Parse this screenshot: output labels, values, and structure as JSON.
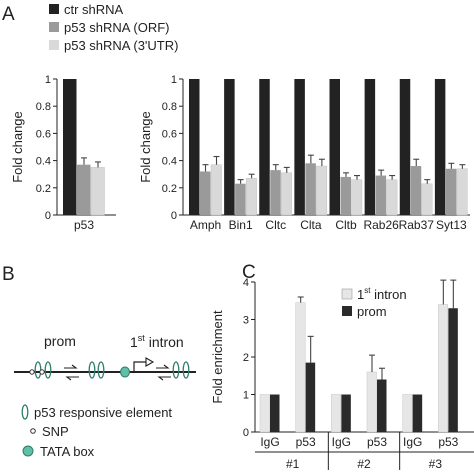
{
  "panels": {
    "A": "A",
    "B": "B",
    "C": "C"
  },
  "legend_a": [
    {
      "label": "ctr shRNA",
      "color": "#222222"
    },
    {
      "label": "p53 shRNA (ORF)",
      "color": "#9a9a9a"
    },
    {
      "label": "p53 shRNA (3'UTR)",
      "color": "#d9d9d9"
    }
  ],
  "diagram": {
    "prom_label": "prom",
    "intron_label_num": "1",
    "intron_label_sup": "st",
    "intron_label_word": " intron",
    "legend": [
      {
        "label": "p53 responsive element",
        "icon": "ellipse-icon"
      },
      {
        "label": "SNP",
        "icon": "circle-icon"
      },
      {
        "label": "TATA box",
        "icon": "tata-box-icon"
      }
    ],
    "colors": {
      "element": "#2e7d6a",
      "tata_fill": "#5fbfa8"
    }
  },
  "chart_data": [
    {
      "id": "a1",
      "type": "bar",
      "categories": [
        "p53"
      ],
      "series": [
        {
          "values": [
            1.0
          ],
          "errors": [
            0
          ],
          "color": "#222222"
        },
        {
          "values": [
            0.37
          ],
          "errors": [
            0.05
          ],
          "color": "#9a9a9a"
        },
        {
          "values": [
            0.35
          ],
          "errors": [
            0.04
          ],
          "color": "#d9d9d9"
        }
      ],
      "ylabel": "Fold change",
      "ylim": [
        0,
        1
      ],
      "yticks": [
        0,
        0.2,
        0.4,
        0.6,
        0.8,
        1
      ],
      "ytick_labels": [
        "0",
        "0.2",
        "0.4",
        "0.6",
        "0.8",
        "1"
      ]
    },
    {
      "id": "a2",
      "type": "bar",
      "categories": [
        "Amph",
        "Bin1",
        "Cltc",
        "Clta",
        "Cltb",
        "Rab26",
        "Rab37",
        "Syt13"
      ],
      "series": [
        {
          "values": [
            1,
            1,
            1,
            1,
            1,
            1,
            1,
            1
          ],
          "errors": [
            0,
            0,
            0,
            0,
            0,
            0,
            0,
            0
          ],
          "color": "#222222"
        },
        {
          "values": [
            0.32,
            0.23,
            0.33,
            0.38,
            0.28,
            0.29,
            0.36,
            0.34
          ],
          "errors": [
            0.05,
            0.03,
            0.04,
            0.06,
            0.03,
            0.04,
            0.05,
            0.04
          ],
          "color": "#9a9a9a"
        },
        {
          "values": [
            0.37,
            0.27,
            0.31,
            0.36,
            0.26,
            0.26,
            0.23,
            0.34
          ],
          "errors": [
            0.06,
            0.03,
            0.04,
            0.05,
            0.03,
            0.03,
            0.03,
            0.03
          ],
          "color": "#d9d9d9"
        }
      ],
      "ylabel": "Fold change",
      "ylim": [
        0,
        1
      ],
      "yticks": [
        0,
        0.2,
        0.4,
        0.6,
        0.8,
        1
      ],
      "ytick_labels": [
        "0",
        "0.2",
        "0.4",
        "0.6",
        "0.8",
        "1"
      ]
    },
    {
      "id": "c",
      "type": "bar",
      "categories": [
        "IgG",
        "p53",
        "IgG",
        "p53",
        "IgG",
        "p53"
      ],
      "groups": [
        "#1",
        "#2",
        "#3"
      ],
      "series": [
        {
          "name": "1st intron",
          "name_main": "1",
          "name_sup": "st",
          "name_rest": " intron",
          "values": [
            1,
            3.45,
            1,
            1.6,
            1,
            3.4
          ],
          "errors": [
            0,
            0.15,
            0,
            0.45,
            0,
            0.65
          ],
          "color": "#e6e6e6"
        },
        {
          "name": "prom",
          "values": [
            1,
            1.85,
            1,
            1.4,
            1,
            3.3
          ],
          "errors": [
            0,
            0.7,
            0,
            0.3,
            0,
            0.75
          ],
          "color": "#2a2a2a"
        }
      ],
      "ylabel": "Fold enrichment",
      "ylim": [
        0,
        4
      ],
      "yticks": [
        0,
        1,
        2,
        3,
        4
      ],
      "ytick_labels": [
        "0",
        "1",
        "2",
        "3",
        "4"
      ]
    }
  ]
}
